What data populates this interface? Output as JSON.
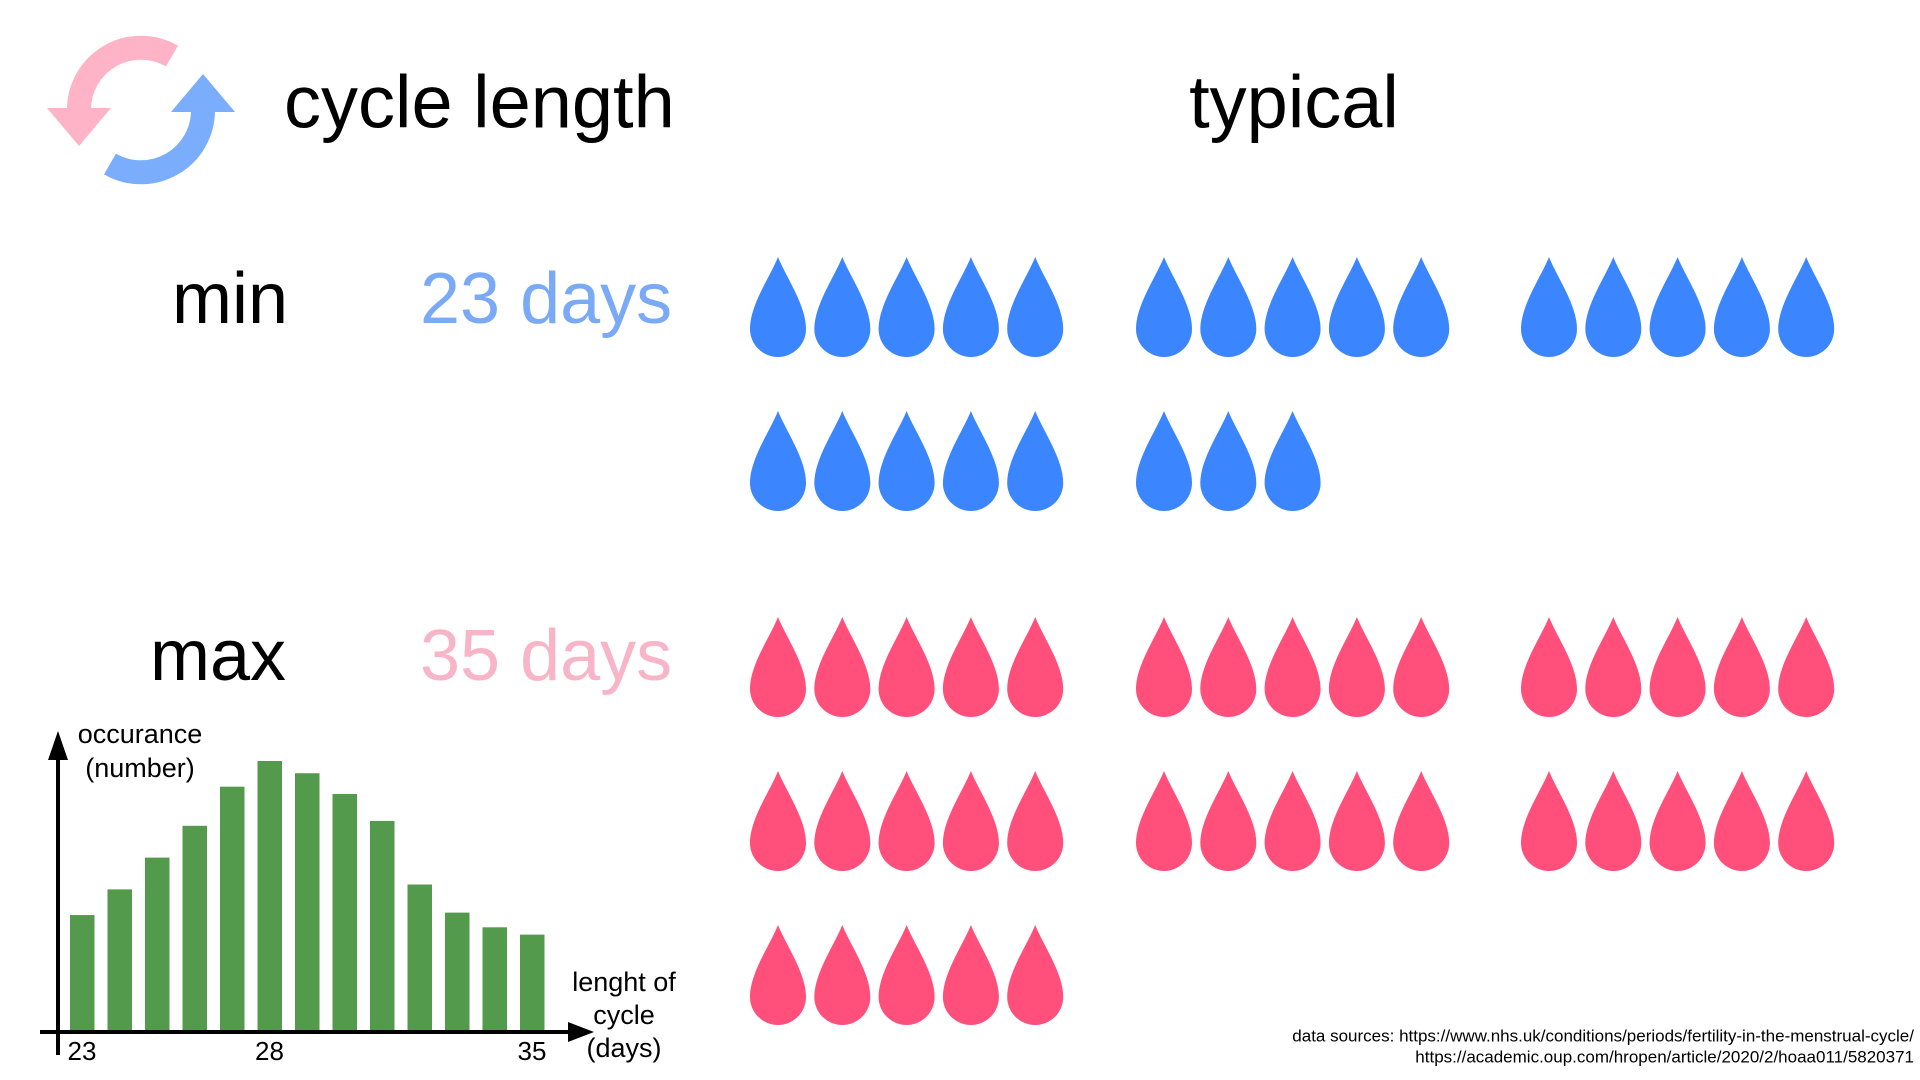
{
  "header": {
    "title": "cycle length",
    "column_title": "typical"
  },
  "rows": [
    {
      "label": "min",
      "value": 23,
      "value_label": "23 days",
      "label_color": "#7aaaf5",
      "drop_color": "#3b86ff"
    },
    {
      "label": "max",
      "value": 35,
      "value_label": "35 days",
      "label_color": "#f8b5c7",
      "drop_color": "#ff4f7a"
    }
  ],
  "chart_data": {
    "type": "bar",
    "y_label": [
      "occurance",
      "(number)"
    ],
    "x_label": [
      "lenght of",
      "cycle",
      "(days)"
    ],
    "categories": [
      "23",
      null,
      null,
      null,
      null,
      "28",
      null,
      null,
      null,
      null,
      null,
      null,
      "35"
    ],
    "values": [
      94,
      115,
      141,
      167,
      199,
      220,
      210,
      193,
      171,
      119,
      96,
      84,
      78
    ],
    "color": "#539a4d"
  },
  "sources": [
    "data sources: https://www.nhs.uk/conditions/periods/fertility-in-the-menstrual-cycle/",
    "https://academic.oup.com/hropen/article/2020/2/hoaa011/5820371"
  ]
}
